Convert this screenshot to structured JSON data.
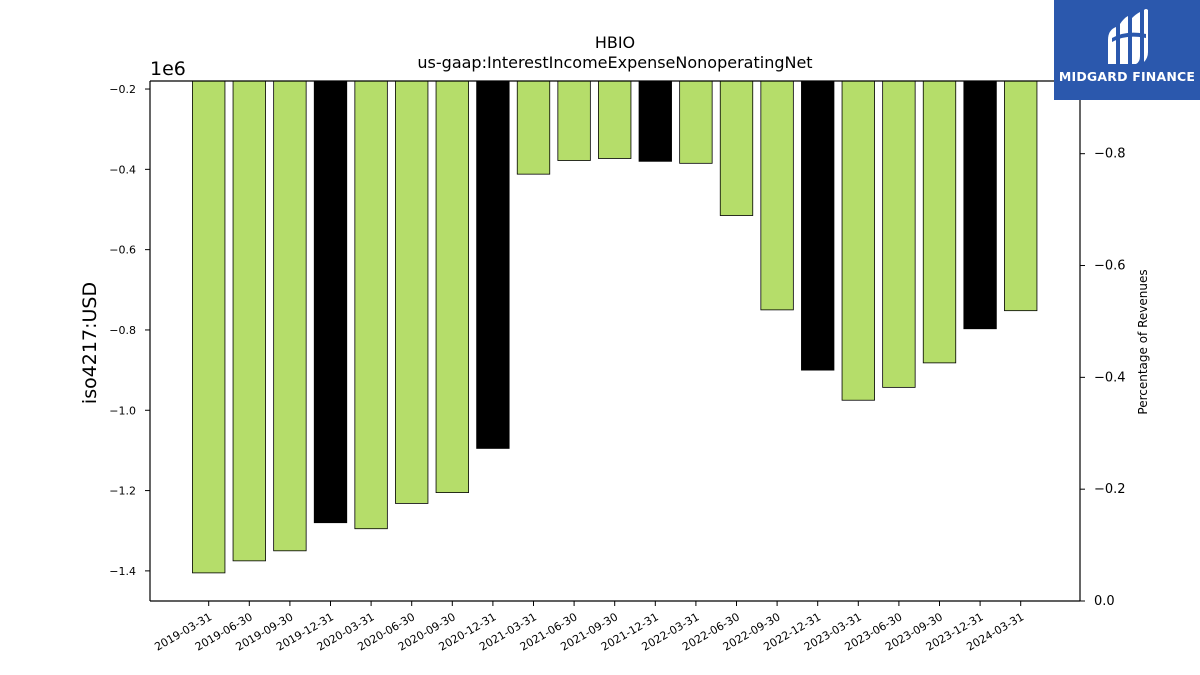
{
  "chart_data": {
    "type": "bar",
    "title": "HBIO",
    "subtitle": "us-gaap:InterestIncomeExpenseNonoperatingNet",
    "ylabel": "iso4217:USD",
    "y_offset_label": "1e6",
    "y2label": "Percentage of Revenues",
    "categories": [
      "2019-03-31",
      "2019-06-30",
      "2019-09-30",
      "2019-12-31",
      "2020-03-31",
      "2020-06-30",
      "2020-09-30",
      "2020-12-31",
      "2021-03-31",
      "2021-06-30",
      "2021-09-30",
      "2021-12-31",
      "2022-03-31",
      "2022-06-30",
      "2022-09-30",
      "2022-12-31",
      "2023-03-31",
      "2023-06-30",
      "2023-09-30",
      "2023-12-31",
      "2024-03-31"
    ],
    "values": [
      -1405000,
      -1375000,
      -1350000,
      -1280000,
      -1295000,
      -1232000,
      -1205000,
      -1095000,
      -412000,
      -378000,
      -373000,
      -380000,
      -385000,
      -515000,
      -750000,
      -900000,
      -975000,
      -943000,
      -882000,
      -797000,
      -752000
    ],
    "highlight": [
      false,
      false,
      false,
      true,
      false,
      false,
      false,
      true,
      false,
      false,
      false,
      true,
      false,
      false,
      false,
      true,
      false,
      false,
      false,
      true,
      false
    ],
    "colors": {
      "normal": "#b5dd6a",
      "highlight": "#000000",
      "edge": "#000000"
    },
    "ylim": [
      -1475000,
      -180000
    ],
    "yticks": [
      -0.2,
      -0.4,
      -0.6,
      -0.8,
      -1.0,
      -1.2,
      -1.4
    ],
    "ytick_labels": [
      "−0.2",
      "−0.4",
      "−0.6",
      "−0.8",
      "−1.0",
      "−1.2",
      "−1.4"
    ],
    "y2lim": [
      0.0,
      -0.93
    ],
    "y2ticks": [
      0.0,
      -0.2,
      -0.4,
      -0.6,
      -0.8
    ],
    "y2tick_labels": [
      "0.0",
      "−0.2",
      "−0.4",
      "−0.6",
      "−0.8"
    ],
    "grid": false
  },
  "logo": {
    "text": "MIDGARD FINANCE",
    "icon": "midgard-logo-icon"
  }
}
